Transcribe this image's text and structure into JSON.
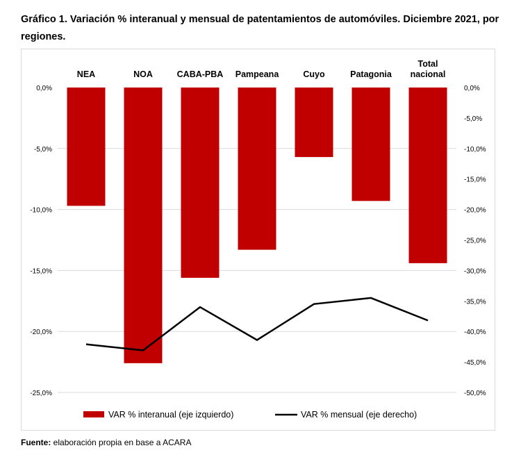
{
  "title": "Gráfico 1. Variación % interanual y mensual de patentamientos de automóviles. Diciembre 2021, por regiones.",
  "source": {
    "label": "Fuente:",
    "text": " elaboración propia en base a ACARA"
  },
  "chart_data": {
    "type": "bar+line",
    "categories": [
      "NEA",
      "NOA",
      "CABA-PBA",
      "Pampeana",
      "Cuyo",
      "Patagonia",
      "Total nacional"
    ],
    "series": [
      {
        "name": "VAR % interanual (eje izquierdo)",
        "type": "bar",
        "axis": "left",
        "color": "#c00000",
        "values": [
          -9.7,
          -22.6,
          -15.6,
          -13.3,
          -5.7,
          -9.3,
          -14.4
        ]
      },
      {
        "name": "VAR % mensual (eje derecho)",
        "type": "line",
        "axis": "right",
        "color": "#000000",
        "values": [
          -42.1,
          -43.1,
          -36.0,
          -41.4,
          -35.5,
          -34.5,
          -38.2
        ]
      }
    ],
    "left_axis": {
      "ylim": [
        -25,
        0
      ],
      "ticks": [
        "0,0%",
        "-5,0%",
        "-10,0%",
        "-15,0%",
        "-20,0%",
        "-25,0%"
      ]
    },
    "right_axis": {
      "ylim": [
        -50,
        0
      ],
      "ticks": [
        "0,0%",
        "-5,0%",
        "-10,0%",
        "-15,0%",
        "-20,0%",
        "-25,0%",
        "-30,0%",
        "-35,0%",
        "-40,0%",
        "-45,0%",
        "-50,0%"
      ]
    },
    "category_labels_position": "top",
    "grid": true,
    "legend": "bottom"
  }
}
